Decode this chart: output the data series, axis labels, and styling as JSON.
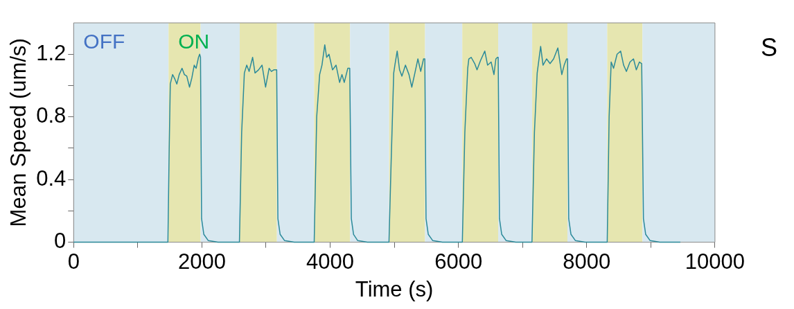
{
  "chart_data": {
    "type": "line",
    "xlabel": "Time (s)",
    "ylabel": "Mean Speed (um/s)",
    "xlim": [
      0,
      10000
    ],
    "ylim": [
      0,
      1.4
    ],
    "xticks": [
      0,
      {
        "value": 1000,
        "label": null
      },
      2000,
      {
        "value": 3000,
        "label": null
      },
      4000,
      {
        "value": 5000,
        "label": null
      },
      6000,
      {
        "value": 7000,
        "label": null
      },
      8000,
      {
        "value": 9000,
        "label": null
      },
      10000
    ],
    "yticks": [
      0,
      {
        "value": 0.2,
        "label": null
      },
      0.4,
      {
        "value": 0.6,
        "label": null
      },
      0.8,
      {
        "value": 1.0,
        "label": null
      },
      1.2
    ],
    "grid": false,
    "legend": false,
    "marker": "none",
    "line_style": "solid",
    "series": [
      {
        "color": "#2b8a9a",
        "x": [
          0,
          1470,
          1490,
          1507,
          1543,
          1580,
          1609,
          1646,
          1690,
          1727,
          1764,
          1807,
          1844,
          1880,
          1910,
          1947,
          1965,
          1978,
          1995,
          2030,
          2100,
          2250,
          2585,
          2620,
          2662,
          2699,
          2736,
          2791,
          2828,
          2883,
          2938,
          2993,
          3048,
          3084,
          3121,
          3166,
          3185,
          3220,
          3290,
          3440,
          3751,
          3790,
          3836,
          3872,
          3916,
          3945,
          3982,
          4037,
          4092,
          4147,
          4184,
          4220,
          4275,
          4305,
          4330,
          4365,
          4430,
          4580,
          4917,
          4950,
          4991,
          5009,
          5045,
          5082,
          5119,
          5174,
          5229,
          5273,
          5321,
          5368,
          5412,
          5456,
          5476,
          5495,
          5530,
          5600,
          5750,
          6061,
          6100,
          6145,
          6162,
          6199,
          6254,
          6290,
          6345,
          6411,
          6455,
          6510,
          6554,
          6584,
          6609,
          6620,
          6640,
          6675,
          6745,
          6895,
          7147,
          7185,
          7228,
          7282,
          7319,
          7374,
          7429,
          7484,
          7550,
          7612,
          7649,
          7686,
          7702,
          7720,
          7755,
          7825,
          7975,
          8320,
          8350,
          8382,
          8419,
          8474,
          8529,
          8576,
          8620,
          8675,
          8730,
          8774,
          8822,
          8858,
          8866,
          8885,
          8920,
          8990,
          9140,
          9460
        ],
        "values": [
          0,
          0,
          0.6,
          1.01,
          1.07,
          1.04,
          1.01,
          1.07,
          1.11,
          1.07,
          1.06,
          0.99,
          1.05,
          1.13,
          1.11,
          1.18,
          1.2,
          1.18,
          0.15,
          0.05,
          0.01,
          0,
          0,
          0.7,
          1.08,
          1.13,
          1.09,
          1.18,
          1.08,
          1.1,
          1.13,
          0.99,
          1.11,
          1.09,
          1.1,
          1.1,
          0.15,
          0.05,
          0.01,
          0,
          0,
          0.8,
          1.07,
          1.13,
          1.26,
          1.18,
          1.2,
          1.1,
          1.13,
          1.02,
          1.07,
          1.02,
          1.11,
          1.11,
          0.15,
          0.05,
          0.01,
          0,
          0,
          0.5,
          1.08,
          1.13,
          1.22,
          1.1,
          1.06,
          1.13,
          1.07,
          0.99,
          1.08,
          1.17,
          1.09,
          1.17,
          1.17,
          0.15,
          0.05,
          0.01,
          0,
          0,
          0.7,
          1.11,
          1.17,
          1.18,
          1.14,
          1.1,
          1.16,
          1.22,
          1.13,
          1.15,
          1.07,
          1.17,
          1.18,
          1.18,
          0.15,
          0.05,
          0.01,
          0,
          0,
          0.7,
          1.08,
          1.25,
          1.13,
          1.17,
          1.14,
          1.17,
          1.24,
          1.07,
          1.13,
          1.17,
          1.17,
          0.15,
          0.05,
          0.01,
          0,
          0,
          0.8,
          1.15,
          1.11,
          1.2,
          1.22,
          1.13,
          1.09,
          1.15,
          1.17,
          1.1,
          1.15,
          1.14,
          1.14,
          0.15,
          0.05,
          0.01,
          0,
          0
        ]
      }
    ],
    "bands": [
      {
        "axis": "x",
        "from": 0,
        "to": 1480,
        "label": "OFF",
        "color": "#d8e8f0"
      },
      {
        "axis": "x",
        "from": 1480,
        "to": 1980,
        "label": "ON",
        "color": "#e6e6b0"
      },
      {
        "axis": "x",
        "from": 1980,
        "to": 2590,
        "color": "#d8e8f0"
      },
      {
        "axis": "x",
        "from": 2590,
        "to": 3170,
        "color": "#e6e6b0"
      },
      {
        "axis": "x",
        "from": 3170,
        "to": 3750,
        "color": "#d8e8f0"
      },
      {
        "axis": "x",
        "from": 3750,
        "to": 4310,
        "color": "#e6e6b0"
      },
      {
        "axis": "x",
        "from": 4310,
        "to": 4920,
        "color": "#d8e8f0"
      },
      {
        "axis": "x",
        "from": 4920,
        "to": 5480,
        "color": "#e6e6b0"
      },
      {
        "axis": "x",
        "from": 5480,
        "to": 6060,
        "color": "#d8e8f0"
      },
      {
        "axis": "x",
        "from": 6060,
        "to": 6620,
        "color": "#e6e6b0"
      },
      {
        "axis": "x",
        "from": 6620,
        "to": 7150,
        "color": "#d8e8f0"
      },
      {
        "axis": "x",
        "from": 7150,
        "to": 7700,
        "color": "#e6e6b0"
      },
      {
        "axis": "x",
        "from": 7700,
        "to": 8320,
        "color": "#d8e8f0"
      },
      {
        "axis": "x",
        "from": 8320,
        "to": 8870,
        "color": "#e6e6b0"
      },
      {
        "axis": "x",
        "from": 8870,
        "to": 10000,
        "color": "#d8e8f0"
      }
    ],
    "annotations": [
      "S"
    ]
  }
}
